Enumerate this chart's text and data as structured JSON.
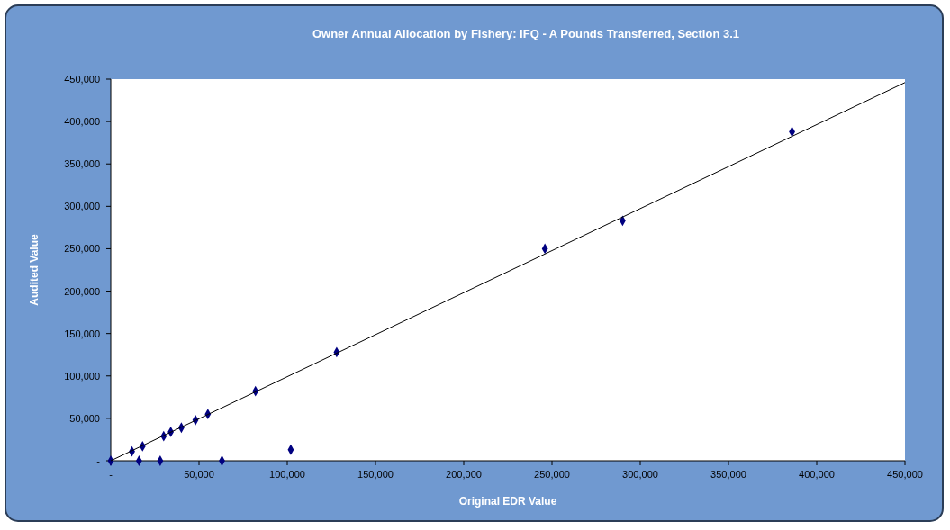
{
  "chart_data": {
    "type": "scatter",
    "title": "Owner Annual Allocation by Fishery: IFQ - A Pounds Transferred, Section 3.1",
    "xlabel": "Original EDR Value",
    "ylabel": "Audited Value",
    "xlim": [
      0,
      450000
    ],
    "ylim": [
      0,
      450000
    ],
    "xticks": [
      {
        "value": 0,
        "label": "-"
      },
      {
        "value": 50000,
        "label": "50,000"
      },
      {
        "value": 100000,
        "label": "100,000"
      },
      {
        "value": 150000,
        "label": "150,000"
      },
      {
        "value": 200000,
        "label": "200,000"
      },
      {
        "value": 250000,
        "label": "250,000"
      },
      {
        "value": 300000,
        "label": "300,000"
      },
      {
        "value": 350000,
        "label": "350,000"
      },
      {
        "value": 400000,
        "label": "400,000"
      },
      {
        "value": 450000,
        "label": "450,000"
      }
    ],
    "yticks": [
      {
        "value": 0,
        "label": "-"
      },
      {
        "value": 50000,
        "label": "50,000"
      },
      {
        "value": 100000,
        "label": "100,000"
      },
      {
        "value": 150000,
        "label": "150,000"
      },
      {
        "value": 200000,
        "label": "200,000"
      },
      {
        "value": 250000,
        "label": "250,000"
      },
      {
        "value": 300000,
        "label": "300,000"
      },
      {
        "value": 350000,
        "label": "350,000"
      },
      {
        "value": 400000,
        "label": "400,000"
      },
      {
        "value": 450000,
        "label": "450,000"
      }
    ],
    "grid": false,
    "marker": "diamond",
    "series": [
      {
        "color": "#000080",
        "x": [
          0,
          12000,
          18000,
          16000,
          28000,
          30000,
          34000,
          40000,
          48000,
          55000,
          63000,
          82000,
          102000,
          128000,
          246000,
          290000,
          386000
        ],
        "values": [
          0,
          11000,
          17000,
          0,
          0,
          29000,
          34000,
          39000,
          48000,
          55000,
          0,
          82000,
          13000,
          128000,
          250000,
          283000,
          388000
        ]
      },
      {
        "type": "line",
        "color": "#000000",
        "x": [
          0,
          450000
        ],
        "values": [
          0,
          446000
        ],
        "marker": "none"
      }
    ]
  }
}
